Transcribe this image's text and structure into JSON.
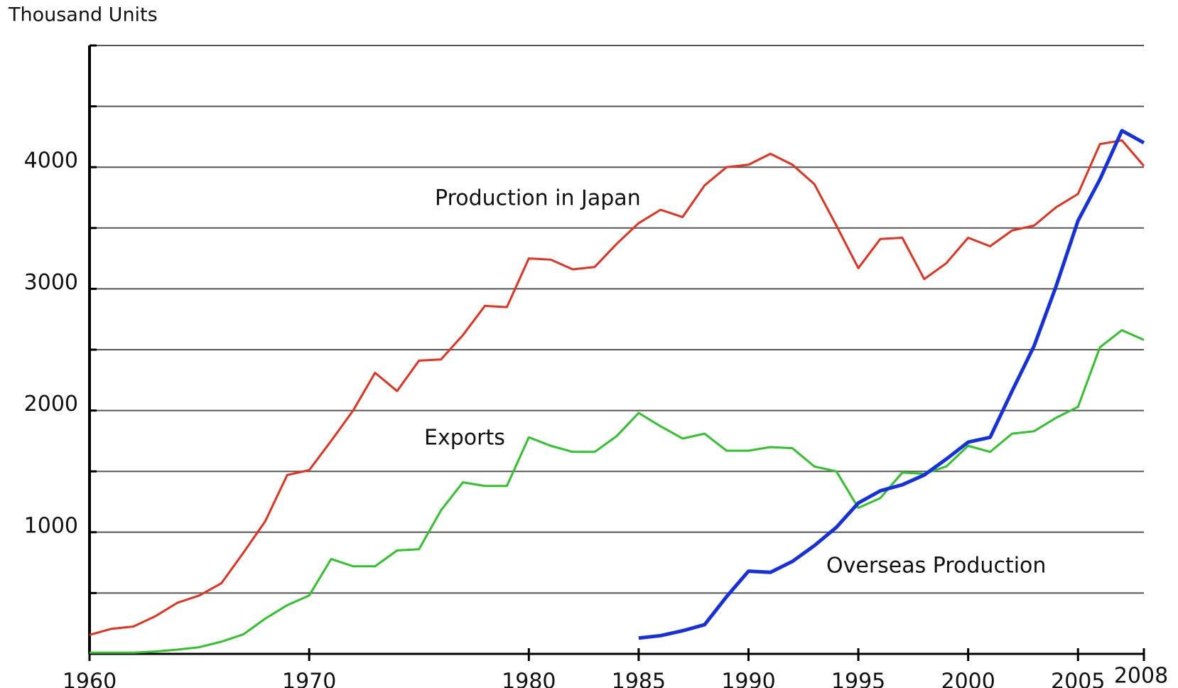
{
  "chart_data": {
    "type": "line",
    "y_label": "Thousand Units",
    "x": [
      1960,
      1961,
      1962,
      1963,
      1964,
      1965,
      1966,
      1967,
      1968,
      1969,
      1970,
      1971,
      1972,
      1973,
      1974,
      1975,
      1976,
      1977,
      1978,
      1979,
      1980,
      1981,
      1982,
      1983,
      1984,
      1985,
      1986,
      1987,
      1988,
      1989,
      1990,
      1991,
      1992,
      1993,
      1994,
      1995,
      1996,
      1997,
      1998,
      1999,
      2000,
      2001,
      2002,
      2003,
      2004,
      2005,
      2006,
      2007,
      2008
    ],
    "series": [
      {
        "name": "Production in Japan",
        "color": "#e8301c",
        "values": [
          156,
          206,
          225,
          310,
          420,
          480,
          580,
          830,
          1090,
          1470,
          1510,
          1750,
          2000,
          2310,
          2160,
          2410,
          2420,
          2620,
          2860,
          2850,
          3250,
          3240,
          3160,
          3180,
          3370,
          3540,
          3650,
          3590,
          3850,
          4000,
          4020,
          4110,
          4020,
          3860,
          3520,
          3170,
          3410,
          3420,
          3080,
          3210,
          3420,
          3350,
          3480,
          3520,
          3670,
          3780,
          4190,
          4220,
          4010
        ]
      },
      {
        "name": "Exports",
        "color": "#2ec42a",
        "values": [
          10,
          10,
          10,
          20,
          35,
          55,
          100,
          160,
          290,
          400,
          480,
          780,
          720,
          720,
          850,
          860,
          1180,
          1410,
          1380,
          1380,
          1780,
          1710,
          1660,
          1660,
          1790,
          1980,
          1870,
          1770,
          1810,
          1670,
          1670,
          1700,
          1690,
          1540,
          1500,
          1200,
          1280,
          1490,
          1480,
          1540,
          1710,
          1660,
          1810,
          1830,
          1940,
          2030,
          2520,
          2660,
          2580
        ]
      },
      {
        "name": "Overseas Production",
        "color": "#1530e0",
        "values": [
          null,
          null,
          null,
          null,
          null,
          null,
          null,
          null,
          null,
          null,
          null,
          null,
          null,
          null,
          null,
          null,
          null,
          null,
          null,
          null,
          null,
          null,
          null,
          null,
          null,
          130,
          150,
          190,
          240,
          470,
          680,
          670,
          760,
          890,
          1040,
          1240,
          1340,
          1390,
          1470,
          1600,
          1740,
          1780,
          2160,
          2530,
          3020,
          3560,
          3900,
          4300,
          4200
        ]
      }
    ],
    "xlim": [
      1960,
      2008
    ],
    "xticks": [
      1960,
      1970,
      1980,
      1985,
      1990,
      1995,
      2000,
      2005,
      2008
    ],
    "ylim": [
      0,
      5000
    ],
    "yticks": [
      1000,
      2000,
      3000,
      4000
    ],
    "ygrid": [
      500,
      1000,
      1500,
      2000,
      2500,
      3000,
      3500,
      4000,
      4500,
      5000
    ]
  }
}
